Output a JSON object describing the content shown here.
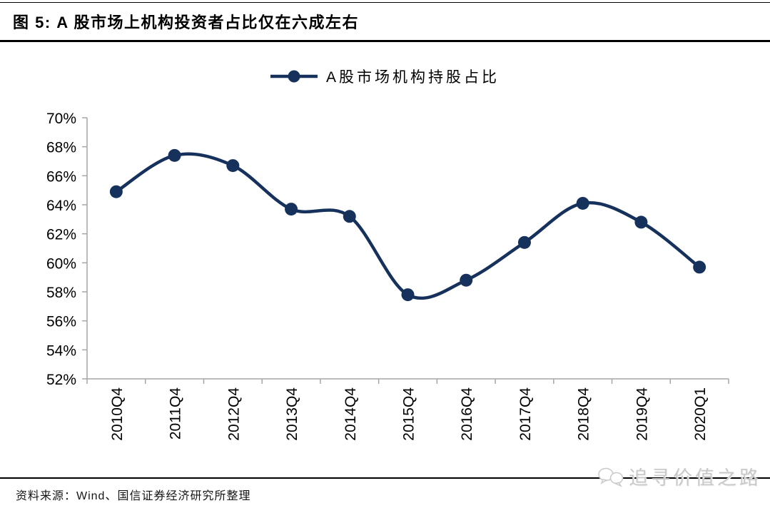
{
  "figure": {
    "title": "图 5: A 股市场上机构投资者占比仅在六成左右",
    "source": "资料来源：Wind、国信证券经济研究所整理",
    "watermark": "追寻价值之路"
  },
  "legend": {
    "label": "A股市场机构持股占比"
  },
  "colors": {
    "line": "#16325C",
    "axis": "#A6A6A6",
    "rule": "#000000",
    "watermark": "#C9C9C9"
  },
  "chart_data": {
    "type": "line",
    "title": "A股市场机构持股占比",
    "categories": [
      "2010Q4",
      "2011Q4",
      "2012Q4",
      "2013Q4",
      "2014Q4",
      "2015Q4",
      "2016Q4",
      "2017Q4",
      "2018Q4",
      "2019Q4",
      "2020Q1"
    ],
    "values": [
      64.9,
      67.4,
      66.7,
      63.7,
      63.2,
      57.8,
      58.8,
      61.4,
      64.1,
      62.8,
      59.7
    ],
    "ylim": [
      52,
      70
    ],
    "ytick_step": 2,
    "ytick_labels": [
      "70%",
      "68%",
      "66%",
      "64%",
      "62%",
      "60%",
      "58%",
      "56%",
      "54%",
      "52%"
    ],
    "ylabel": "",
    "xlabel": "",
    "grid": false,
    "smooth": true,
    "marker": "circle",
    "legend_position": "top",
    "x_label_rotation": -90
  }
}
